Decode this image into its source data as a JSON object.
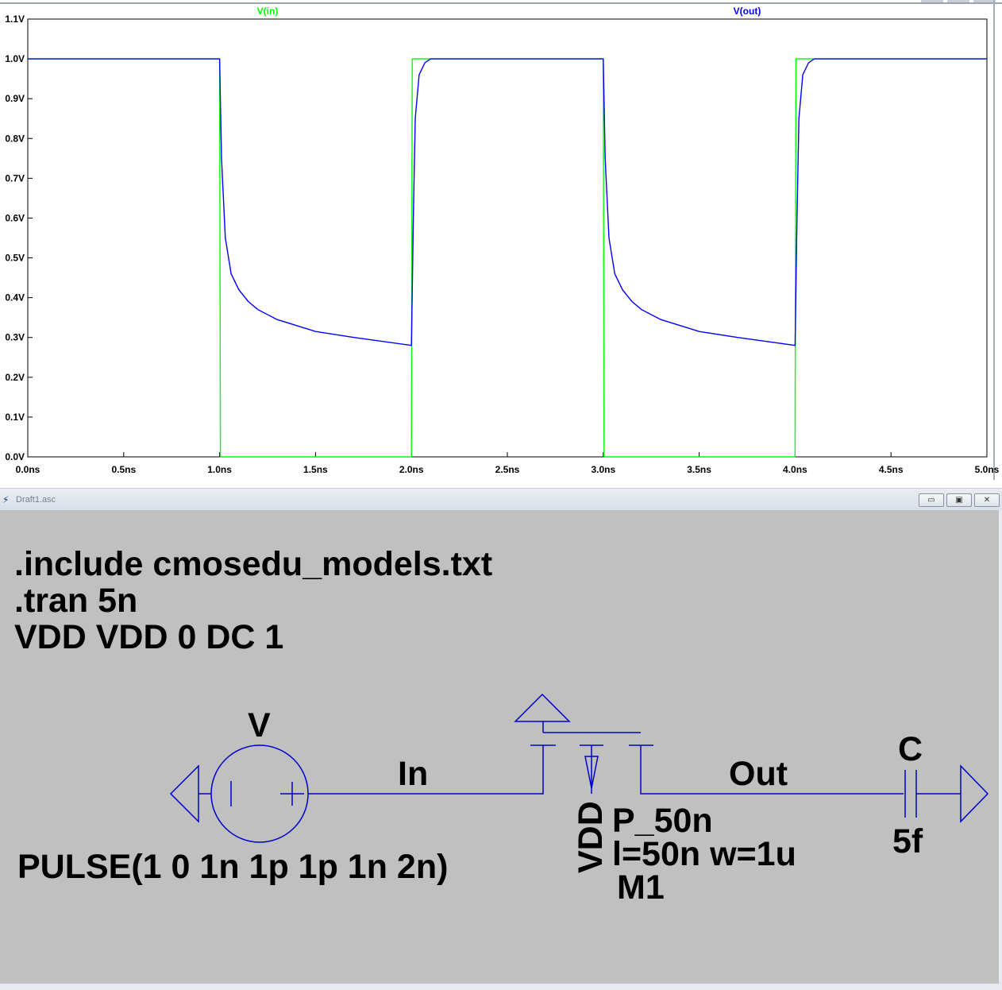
{
  "chart_data": {
    "type": "line",
    "title": "",
    "xlabel": "",
    "ylabel": "",
    "xlim": [
      0,
      5
    ],
    "ylim": [
      0,
      1.1
    ],
    "x_unit": "ns",
    "y_unit": "V",
    "x_ticks": [
      "0.0ns",
      "0.5ns",
      "1.0ns",
      "1.5ns",
      "2.0ns",
      "2.5ns",
      "3.0ns",
      "3.5ns",
      "4.0ns",
      "4.5ns",
      "5.0ns"
    ],
    "y_ticks": [
      "0.0V",
      "0.1V",
      "0.2V",
      "0.3V",
      "0.4V",
      "0.5V",
      "0.6V",
      "0.7V",
      "0.8V",
      "0.9V",
      "1.0V",
      "1.1V"
    ],
    "series": [
      {
        "name": "V(in)",
        "color": "#00ff00",
        "x": [
          0,
          1.0,
          1.004,
          2.0,
          2.004,
          3.0,
          3.004,
          4.0,
          4.004,
          5.0
        ],
        "y": [
          1,
          1,
          0,
          0,
          1,
          1,
          0,
          0,
          1,
          1
        ]
      },
      {
        "name": "V(out)",
        "color": "#0000ff",
        "x": [
          0,
          1.0,
          1.01,
          1.03,
          1.06,
          1.1,
          1.15,
          1.2,
          1.3,
          1.5,
          1.7,
          2.0,
          2.01,
          2.02,
          2.04,
          2.07,
          2.1,
          2.15,
          3.0,
          3.01,
          3.03,
          3.06,
          3.1,
          3.15,
          3.2,
          3.3,
          3.5,
          3.7,
          4.0,
          4.01,
          4.02,
          4.04,
          4.07,
          4.1,
          4.15,
          5.0
        ],
        "y": [
          1,
          1,
          0.75,
          0.55,
          0.46,
          0.42,
          0.39,
          0.37,
          0.345,
          0.315,
          0.3,
          0.28,
          0.6,
          0.85,
          0.96,
          0.99,
          1.0,
          1.0,
          1,
          0.75,
          0.55,
          0.46,
          0.42,
          0.39,
          0.37,
          0.345,
          0.315,
          0.3,
          0.28,
          0.6,
          0.85,
          0.96,
          0.99,
          1.0,
          1.0,
          1.0
        ]
      }
    ]
  },
  "schematic_window": {
    "title": "Draft1.asc",
    "app_icon": "ltspice-icon",
    "buttons": {
      "minimize": "▭",
      "restore": "▣",
      "close": "✕"
    },
    "directives": [
      ".include cmosedu_models.txt",
      ".tran 5n",
      "VDD VDD 0 DC 1"
    ],
    "labels": {
      "source_name": "V",
      "source_value": "PULSE(1 0 1n 1p 1p 1n 2n)",
      "net_in": "In",
      "net_out": "Out",
      "net_vdd": "VDD",
      "mos_model": "P_50n",
      "mos_params": "l=50n w=1u",
      "mos_name": "M1",
      "cap_name": "C",
      "cap_value": "5f"
    },
    "colors": {
      "wire": "#0000cd",
      "canvas": "#c0c0c0",
      "text": "#000000"
    }
  }
}
